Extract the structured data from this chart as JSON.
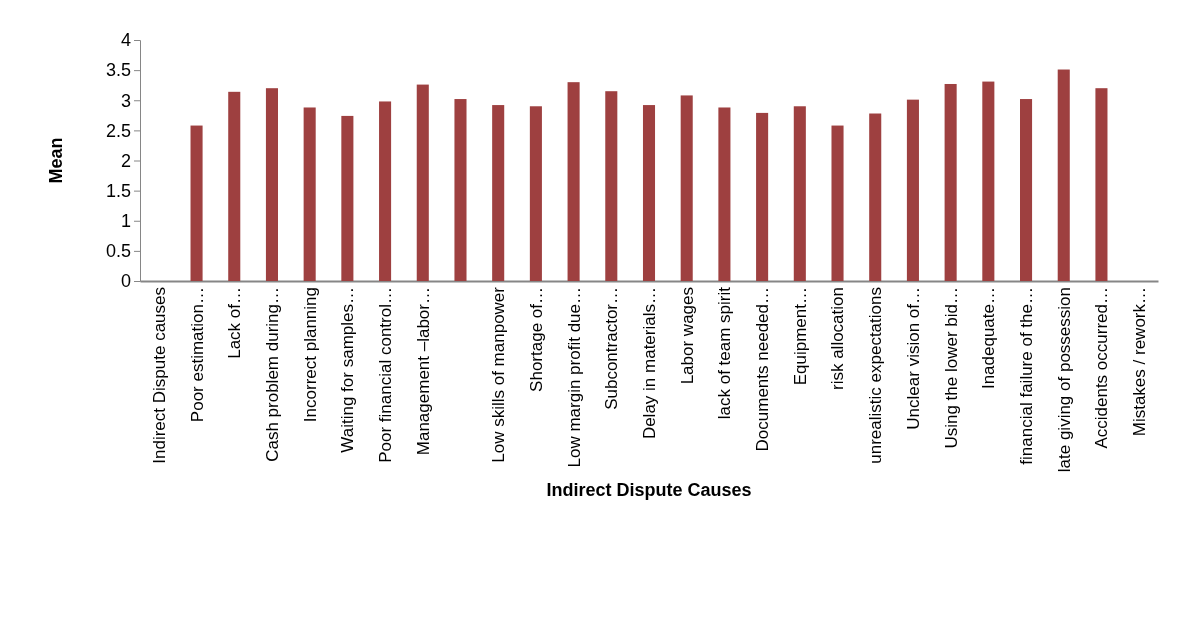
{
  "chart_data": {
    "type": "bar",
    "xlabel": "Indirect Dispute Causes",
    "ylabel": "Mean",
    "categories": [
      "Indirect Dispute causes",
      "Poor estimation…",
      "Lack of…",
      "Cash problem during…",
      "Incorrect planning",
      "Waiting for samples…",
      "Poor financial control…",
      "Management –labor…",
      null,
      "Low skills of manpower",
      "Shortage of…",
      "Low margin profit due…",
      "Subcontractor…",
      "Delay in materials…",
      "Labor wages",
      "lack of team spirit",
      "Documents needed…",
      "Equipment…",
      "risk allocation",
      "unrealistic expectations",
      "Unclear vision of…",
      "Using the lower bid…",
      "Inadequate…",
      "financial failure of the…",
      "late giving of possession",
      "Accidents occurred…",
      "Mistakes / rework…"
    ],
    "values": [
      null,
      2.58,
      3.14,
      3.2,
      2.88,
      2.74,
      2.98,
      3.26,
      3.02,
      2.92,
      2.9,
      3.3,
      3.15,
      2.92,
      3.08,
      2.88,
      2.79,
      2.9,
      2.58,
      2.78,
      3.01,
      3.27,
      3.31,
      3.02,
      3.51,
      3.2,
      null
    ],
    "color": "#9e4040",
    "ylim": [
      0,
      4
    ],
    "yticks": [
      0,
      0.5,
      1,
      1.5,
      2,
      2.5,
      3,
      3.5,
      4
    ],
    "grid": false
  }
}
